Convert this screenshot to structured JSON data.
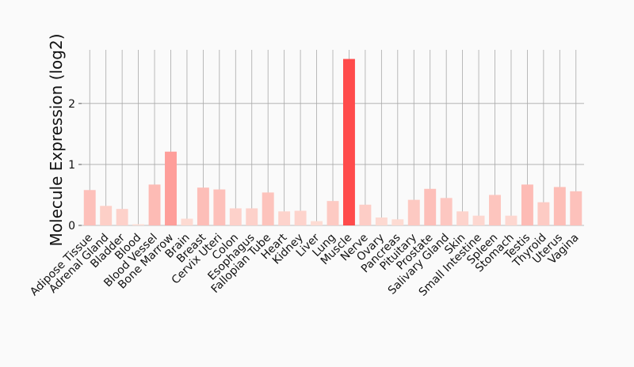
{
  "chart_data": {
    "type": "bar",
    "title": "",
    "xlabel": "",
    "ylabel": "Molecule Expression (log2)",
    "ylim": [
      0,
      2.88
    ],
    "yticks": [
      0,
      1,
      2
    ],
    "grid": true,
    "colors": {
      "low": "#fde0d8",
      "high": "#ff4b4b",
      "grid": "#a9a9a9",
      "background": "#fafafa"
    },
    "categories": [
      "Adipose Tissue",
      "Adrenal Gland",
      "Bladder",
      "Blood",
      "Blood Vessel",
      "Bone Marrow",
      "Brain",
      "Breast",
      "Cervix Uteri",
      "Colon",
      "Esophagus",
      "Fallopian Tube",
      "Heart",
      "Kidney",
      "Liver",
      "Lung",
      "Muscle",
      "Nerve",
      "Ovary",
      "Pancreas",
      "Pituitary",
      "Prostate",
      "Salivary Gland",
      "Skin",
      "Small Intestine",
      "Spleen",
      "Stomach",
      "Testis",
      "Thyroid",
      "Uterus",
      "Vagina"
    ],
    "values": [
      0.58,
      0.32,
      0.27,
      0.02,
      0.67,
      1.21,
      0.11,
      0.62,
      0.59,
      0.28,
      0.28,
      0.54,
      0.23,
      0.24,
      0.07,
      0.4,
      2.73,
      0.34,
      0.13,
      0.1,
      0.42,
      0.6,
      0.45,
      0.23,
      0.16,
      0.5,
      0.16,
      0.67,
      0.38,
      0.63,
      0.56
    ]
  }
}
